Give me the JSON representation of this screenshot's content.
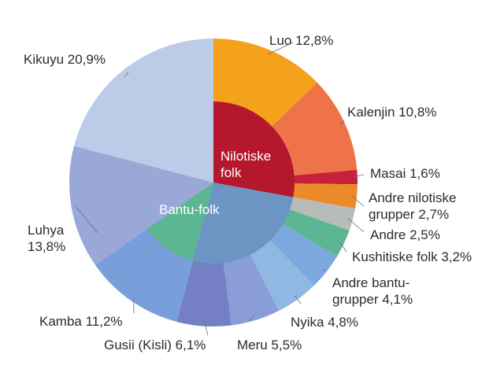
{
  "chart_data": {
    "type": "pie",
    "variant": "sunburst",
    "inner_ring": [
      {
        "label": "Nilotiske folk",
        "lines": [
          "Nilotiske",
          "folk"
        ],
        "color": "#b5172d",
        "members": 4
      },
      {
        "label": "Bantu-folk",
        "lines": [
          "Bantu-folk"
        ],
        "color": "#6c95c4",
        "members": 6
      },
      {
        "label": "",
        "lines": [],
        "color": "#5cb694",
        "members": 1
      }
    ],
    "slices": [
      {
        "label": "Luo",
        "value": 12.8,
        "display": "12,8%",
        "color": "#f4a11c",
        "label_lines": [
          "Luo 12,8%"
        ]
      },
      {
        "label": "Kalenjin",
        "value": 10.8,
        "display": "10,8%",
        "color": "#ef7348",
        "label_lines": [
          "Kalenjin 10,8%"
        ]
      },
      {
        "label": "Masai",
        "value": 1.6,
        "display": "1,6%",
        "color": "#c8213b",
        "label_lines": [
          "Masai 1,6%"
        ]
      },
      {
        "label": "Andre nilotiske grupper",
        "value": 2.7,
        "display": "2,7%",
        "color": "#ea8a2b",
        "label_lines": [
          "Andre nilotiske",
          "grupper 2,7%"
        ]
      },
      {
        "label": "Andre",
        "value": 2.5,
        "display": "2,5%",
        "color": "#b8bcb9",
        "label_lines": [
          "Andre 2,5%"
        ]
      },
      {
        "label": "Kushitiske folk",
        "value": 3.2,
        "display": "3,2%",
        "color": "#5cb694",
        "label_lines": [
          "Kushitiske folk 3,2%"
        ]
      },
      {
        "label": "Andre bantu-grupper",
        "value": 4.1,
        "display": "4,1%",
        "color": "#7ba9de",
        "label_lines": [
          "Andre bantu-",
          "grupper 4,1%"
        ]
      },
      {
        "label": "Nyika",
        "value": 4.8,
        "display": "4,8%",
        "color": "#91b7e3",
        "label_lines": [
          "Nyika 4,8%"
        ]
      },
      {
        "label": "Meru",
        "value": 5.5,
        "display": "5,5%",
        "color": "#8b9dd6",
        "label_lines": [
          "Meru 5,5%"
        ]
      },
      {
        "label": "Gusii (Kisli)",
        "value": 6.1,
        "display": "6,1%",
        "color": "#7580c4",
        "label_lines": [
          "Gusii (Kisli) 6,1%"
        ]
      },
      {
        "label": "Kamba",
        "value": 11.2,
        "display": "11,2%",
        "color": "#789fda",
        "label_lines": [
          "Kamba 11,2%"
        ]
      },
      {
        "label": "Luhya",
        "value": 13.8,
        "display": "13,8%",
        "color": "#9aa8d8",
        "label_lines": [
          "Luhya",
          "13,8%"
        ]
      },
      {
        "label": "Kikuyu",
        "value": 20.9,
        "display": "20,9%",
        "color": "#bccbe8",
        "label_lines": [
          "Kikuyu 20,9%"
        ]
      }
    ],
    "title": "",
    "legend": "none"
  }
}
